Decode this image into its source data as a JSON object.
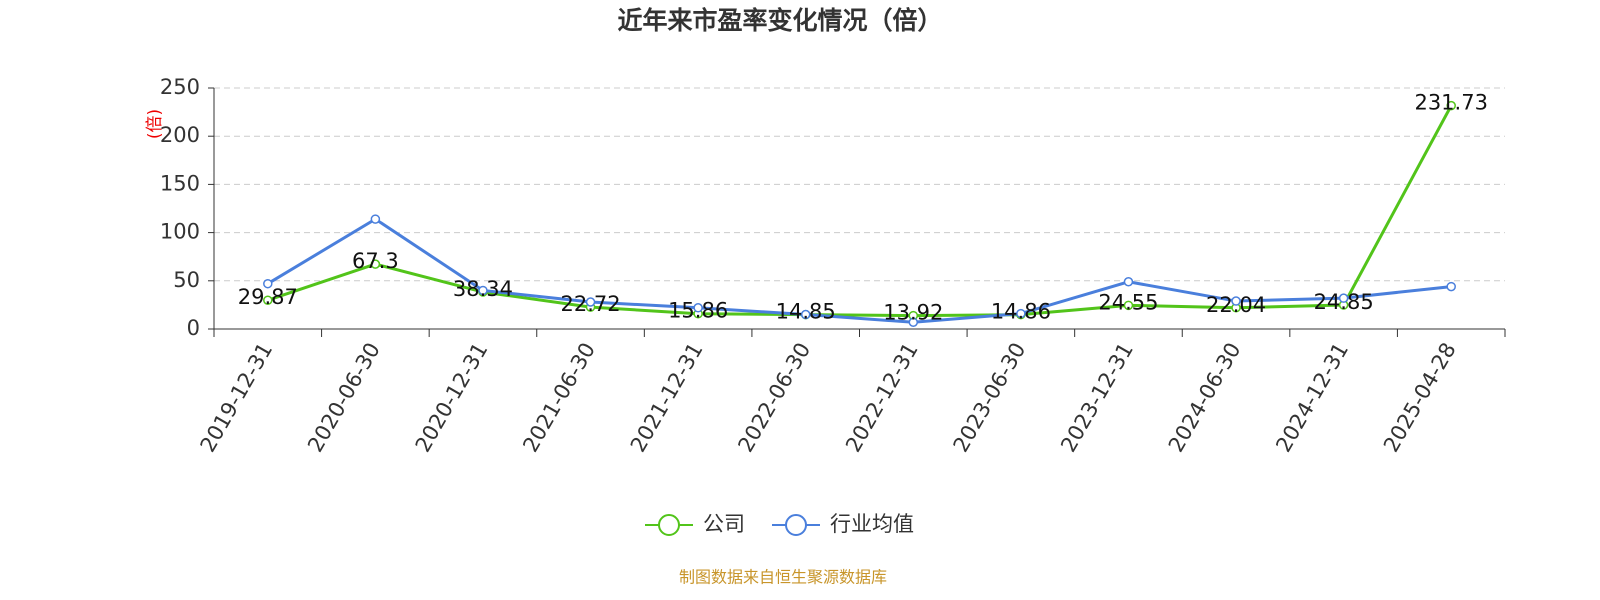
{
  "chart_data": {
    "type": "line",
    "title": "近年来市盈率变化情况（倍）",
    "y_label": "(倍)",
    "source": "制图数据来自恒生聚源数据库",
    "categories": [
      "2019-12-31",
      "2020-06-30",
      "2020-12-31",
      "2021-06-30",
      "2021-12-31",
      "2022-06-30",
      "2022-12-31",
      "2023-06-30",
      "2023-12-31",
      "2024-06-30",
      "2024-12-31",
      "2025-04-28"
    ],
    "series": [
      {
        "name": "公司",
        "color": "#52c41a",
        "values": [
          29.87,
          67.3,
          38.34,
          22.72,
          15.86,
          14.85,
          13.92,
          14.86,
          24.55,
          22.04,
          24.85,
          231.73
        ],
        "show_labels": true
      },
      {
        "name": "行业均值",
        "color": "#4a7fdc",
        "values": [
          47,
          114,
          40,
          28,
          22,
          15,
          7,
          16,
          49,
          29,
          32,
          44
        ],
        "show_labels": false
      }
    ],
    "ylim": [
      0,
      250
    ],
    "yticks": [
      0,
      50,
      100,
      150,
      200,
      250
    ],
    "grid": true
  }
}
